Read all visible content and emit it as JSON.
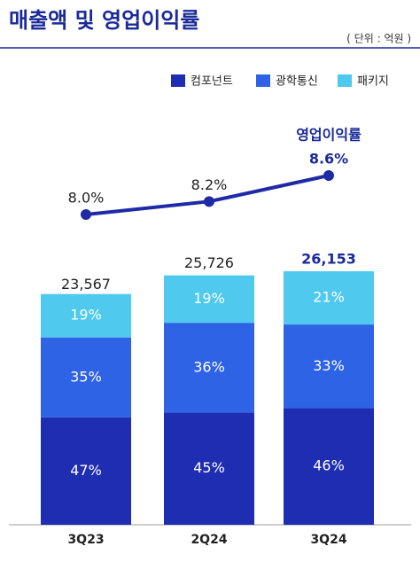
{
  "chart_data": {
    "type": "bar",
    "title": "매출액 및 영업이익률",
    "unit_label": "( 단위 : 억원 )",
    "categories": [
      "3Q23",
      "2Q24",
      "3Q24"
    ],
    "series": [
      {
        "name": "컴포넌트",
        "color": "#1f2db3",
        "values": [
          47,
          45,
          46
        ],
        "value_labels": [
          "47%",
          "45%",
          "46%"
        ]
      },
      {
        "name": "광학통신",
        "color": "#2f63e6",
        "values": [
          35,
          36,
          33
        ],
        "value_labels": [
          "35%",
          "36%",
          "33%"
        ]
      },
      {
        "name": "패키지",
        "color": "#4fc9ee",
        "values": [
          19,
          19,
          21
        ],
        "value_labels": [
          "19%",
          "19%",
          "21%"
        ]
      }
    ],
    "totals": [
      23567,
      25726,
      26153
    ],
    "total_labels": [
      "23,567",
      "25,726",
      "26,153"
    ],
    "line": {
      "name": "영업이익률",
      "color": "#1e2aa6",
      "values": [
        8.0,
        8.2,
        8.6
      ],
      "value_labels": [
        "8.0%",
        "8.2%",
        "8.6%"
      ]
    }
  }
}
